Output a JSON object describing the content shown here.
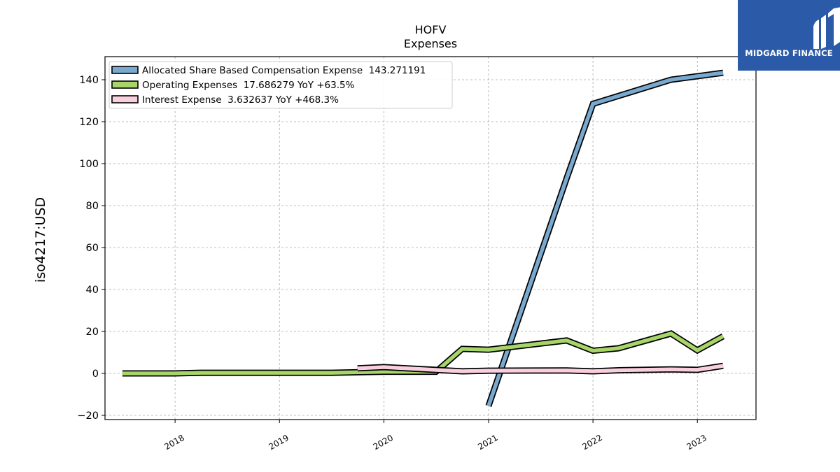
{
  "chart_data": {
    "type": "line",
    "title": "HOFV",
    "subtitle": "Expenses",
    "xlabel": "",
    "ylabel": "iso4217:USD",
    "xlim": [
      "2017-05-01",
      "2023-07-25"
    ],
    "ylim": [
      -22,
      151
    ],
    "x_ticks": [
      "2018",
      "2019",
      "2020",
      "2021",
      "2022",
      "2023"
    ],
    "y_ticks": [
      -20,
      0,
      20,
      40,
      60,
      80,
      100,
      120,
      140
    ],
    "grid": true,
    "legend_position": "top-left",
    "series": [
      {
        "name": "Allocated Share Based Compensation Expense  143.271191",
        "color": "#7aa9cf",
        "points": [
          [
            "2021-01-01",
            -15.5
          ],
          [
            "2021-10-01",
            93
          ],
          [
            "2022-01-01",
            128.5
          ],
          [
            "2022-10-01",
            140
          ],
          [
            "2023-04-01",
            143.3
          ]
        ]
      },
      {
        "name": "Operating Expenses  17.686279 YoY +63.5%",
        "color": "#a8d56a",
        "points": [
          [
            "2017-07-01",
            0
          ],
          [
            "2018-01-01",
            0
          ],
          [
            "2018-04-01",
            0.3
          ],
          [
            "2019-07-01",
            0.3
          ],
          [
            "2020-01-01",
            0.8
          ],
          [
            "2020-07-01",
            0.8
          ],
          [
            "2020-10-01",
            11.7
          ],
          [
            "2021-01-01",
            11.3
          ],
          [
            "2021-10-01",
            15.7
          ],
          [
            "2022-01-01",
            10.8
          ],
          [
            "2022-04-01",
            12
          ],
          [
            "2022-10-01",
            19
          ],
          [
            "2023-01-01",
            11
          ],
          [
            "2023-04-01",
            17.7
          ]
        ]
      },
      {
        "name": "Interest Expense  3.632637 YoY +468.3%",
        "color": "#f9cfe0",
        "points": [
          [
            "2019-10-01",
            2.4
          ],
          [
            "2020-01-01",
            3.0
          ],
          [
            "2020-10-01",
            1.0
          ],
          [
            "2021-01-01",
            1.3
          ],
          [
            "2021-10-01",
            1.4
          ],
          [
            "2022-01-01",
            1.0
          ],
          [
            "2022-04-01",
            1.5
          ],
          [
            "2022-10-01",
            1.9
          ],
          [
            "2023-01-01",
            1.7
          ],
          [
            "2023-04-01",
            3.6
          ]
        ]
      }
    ]
  },
  "logo": {
    "text": "MIDGARD FINANCE",
    "icon": "midgard-logo-icon",
    "background": "#2b5aa8"
  }
}
